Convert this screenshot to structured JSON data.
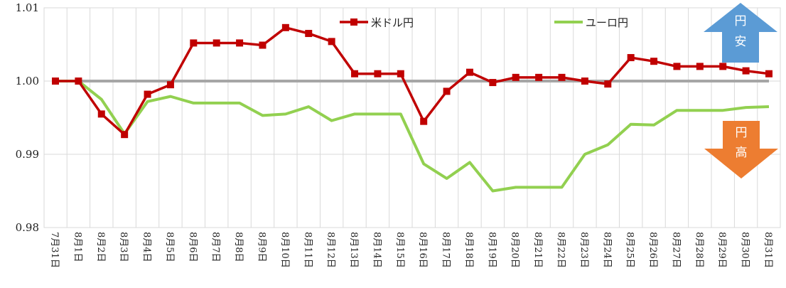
{
  "chart_data": {
    "type": "line",
    "categories": [
      "7月31日",
      "8月1日",
      "8月2日",
      "8月3日",
      "8月4日",
      "8月5日",
      "8月6日",
      "8月7日",
      "8月8日",
      "8月9日",
      "8月10日",
      "8月11日",
      "8月12日",
      "8月13日",
      "8月14日",
      "8月15日",
      "8月16日",
      "8月17日",
      "8月18日",
      "8月19日",
      "8月20日",
      "8月21日",
      "8月22日",
      "8月23日",
      "8月24日",
      "8月25日",
      "8月26日",
      "8月27日",
      "8月28日",
      "8月29日",
      "8月30日",
      "8月31日"
    ],
    "series": [
      {
        "name": "米ドル円",
        "color": "#c00000",
        "marker": "square",
        "values": [
          1.0,
          1.0,
          0.9955,
          0.9927,
          0.9982,
          0.9995,
          1.0052,
          1.0052,
          1.0052,
          1.0049,
          1.0073,
          1.0065,
          1.0054,
          1.001,
          1.001,
          1.001,
          0.9945,
          0.9986,
          1.0012,
          0.9998,
          1.0005,
          1.0005,
          1.0005,
          1.0,
          0.9996,
          1.0032,
          1.0027,
          1.002,
          1.002,
          1.002,
          1.0014,
          1.001
        ]
      },
      {
        "name": "ユーロ円",
        "color": "#92d050",
        "marker": "none",
        "values": [
          1.0,
          1.0,
          0.9975,
          0.9928,
          0.9972,
          0.9979,
          0.997,
          0.997,
          0.997,
          0.9953,
          0.9955,
          0.9965,
          0.9946,
          0.9955,
          0.9955,
          0.9955,
          0.9887,
          0.9867,
          0.9889,
          0.985,
          0.9855,
          0.9855,
          0.9855,
          0.99,
          0.9913,
          0.9941,
          0.994,
          0.996,
          0.996,
          0.996,
          0.9964,
          0.9965
        ]
      }
    ],
    "reference_line": 1.0,
    "reference_line_color": "#a6a6a6",
    "ylim": [
      0.98,
      1.01
    ],
    "yticks": [
      0.98,
      0.99,
      1.0,
      1.01
    ],
    "ytick_labels": [
      "0.98",
      "0.99",
      "1.00",
      "1.01"
    ],
    "grid": true,
    "legend_position": "top-center",
    "annotations": [
      {
        "text": "円安",
        "direction": "up",
        "color": "#5b9bd5"
      },
      {
        "text": "円高",
        "direction": "down",
        "color": "#ed7d31"
      }
    ],
    "title": "",
    "xlabel": "",
    "ylabel": ""
  }
}
